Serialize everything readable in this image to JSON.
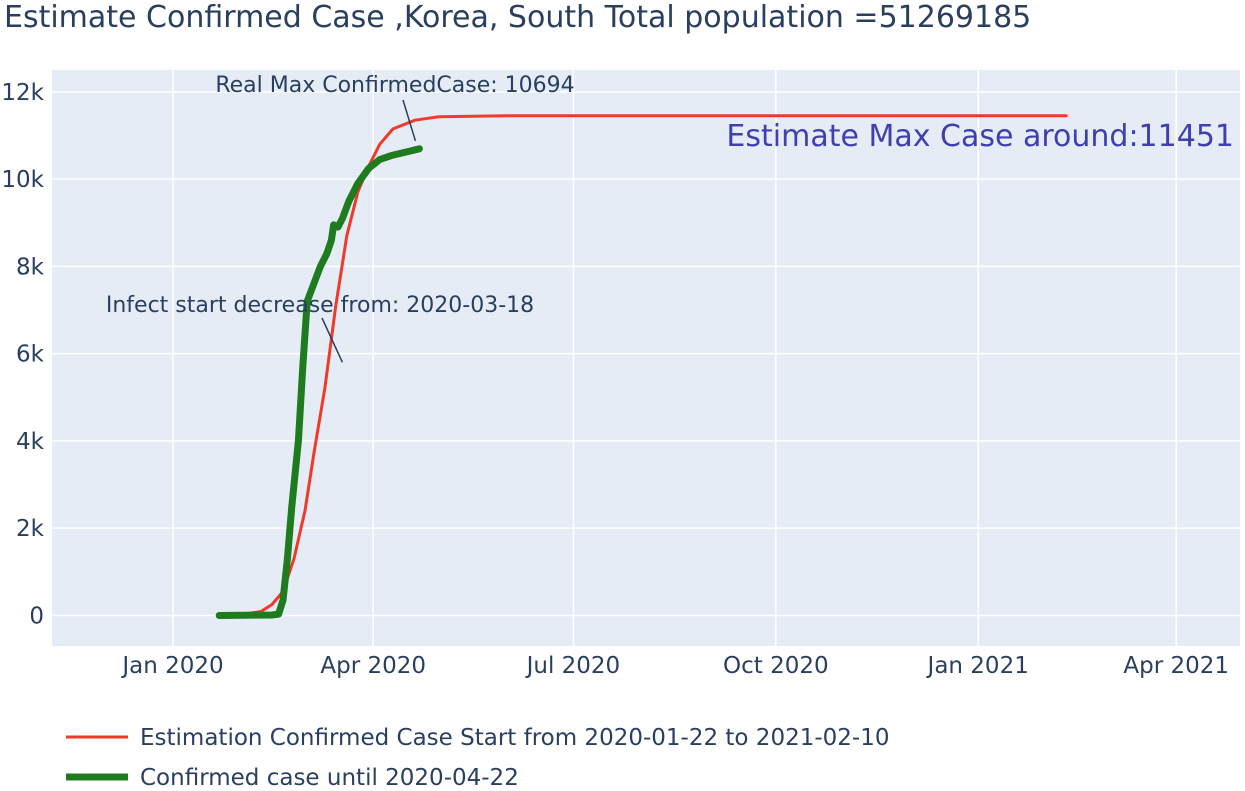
{
  "chart_data": {
    "type": "line",
    "title": "Estimate Confirmed Case ,Korea, South Total population =51269185",
    "xlabel": "",
    "ylabel": "",
    "x_type": "date",
    "xlim": [
      "2019-11-07",
      "2021-04-30"
    ],
    "ylim": [
      -700,
      12500
    ],
    "grid": true,
    "x_ticks": [
      {
        "date": "2020-01-01",
        "label": "Jan 2020"
      },
      {
        "date": "2020-04-01",
        "label": "Apr 2020"
      },
      {
        "date": "2020-07-01",
        "label": "Jul 2020"
      },
      {
        "date": "2020-10-01",
        "label": "Oct 2020"
      },
      {
        "date": "2021-01-01",
        "label": "Jan 2021"
      },
      {
        "date": "2021-04-01",
        "label": "Apr 2021"
      }
    ],
    "y_ticks": [
      {
        "value": 0,
        "label": "0"
      },
      {
        "value": 2000,
        "label": "2k"
      },
      {
        "value": 4000,
        "label": "4k"
      },
      {
        "value": 6000,
        "label": "6k"
      },
      {
        "value": 8000,
        "label": "8k"
      },
      {
        "value": 10000,
        "label": "10k"
      },
      {
        "value": 12000,
        "label": "12k"
      }
    ],
    "legend_position": "bottom",
    "series": [
      {
        "name": "Estimation Confirmed Case Start from 2020-01-22 to 2021-02-10",
        "color": "#ef3a2a",
        "line_style": "thin",
        "points": [
          [
            "2020-01-22",
            0
          ],
          [
            "2020-02-01",
            20
          ],
          [
            "2020-02-10",
            90
          ],
          [
            "2020-02-15",
            250
          ],
          [
            "2020-02-20",
            550
          ],
          [
            "2020-02-25",
            1300
          ],
          [
            "2020-03-01",
            2400
          ],
          [
            "2020-03-05",
            3700
          ],
          [
            "2020-03-10",
            5200
          ],
          [
            "2020-03-15",
            7100
          ],
          [
            "2020-03-20",
            8700
          ],
          [
            "2020-03-25",
            9700
          ],
          [
            "2020-03-30",
            10300
          ],
          [
            "2020-04-04",
            10800
          ],
          [
            "2020-04-10",
            11150
          ],
          [
            "2020-04-20",
            11350
          ],
          [
            "2020-05-01",
            11430
          ],
          [
            "2020-06-01",
            11451
          ],
          [
            "2021-02-10",
            11451
          ]
        ]
      },
      {
        "name": "Confirmed case until 2020-04-22",
        "color": "#1e7b1e",
        "line_style": "thick",
        "points": [
          [
            "2020-01-22",
            0
          ],
          [
            "2020-02-15",
            10
          ],
          [
            "2020-02-18",
            30
          ],
          [
            "2020-02-20",
            350
          ],
          [
            "2020-02-22",
            1300
          ],
          [
            "2020-02-24",
            2500
          ],
          [
            "2020-02-27",
            4000
          ],
          [
            "2020-02-29",
            5700
          ],
          [
            "2020-03-02",
            7200
          ],
          [
            "2020-03-05",
            7600
          ],
          [
            "2020-03-08",
            8000
          ],
          [
            "2020-03-11",
            8300
          ],
          [
            "2020-03-13",
            8600
          ],
          [
            "2020-03-14",
            8950
          ],
          [
            "2020-03-16",
            8900
          ],
          [
            "2020-03-18",
            9100
          ],
          [
            "2020-03-21",
            9500
          ],
          [
            "2020-03-25",
            9900
          ],
          [
            "2020-03-30",
            10250
          ],
          [
            "2020-04-04",
            10450
          ],
          [
            "2020-04-10",
            10550
          ],
          [
            "2020-04-16",
            10620
          ],
          [
            "2020-04-22",
            10694
          ]
        ]
      }
    ],
    "annotations": [
      {
        "text": "Real Max ConfirmedCase: 10694",
        "point": [
          "2020-04-22",
          10694
        ],
        "arrow": true
      },
      {
        "text": "Infect start decrease from: 2020-03-18",
        "point": [
          "2020-03-18",
          5800
        ],
        "arrow": true
      },
      {
        "text": "Estimate Max Case around:11451",
        "point": [
          "2021-02-10",
          11451
        ],
        "arrow": false
      }
    ]
  }
}
